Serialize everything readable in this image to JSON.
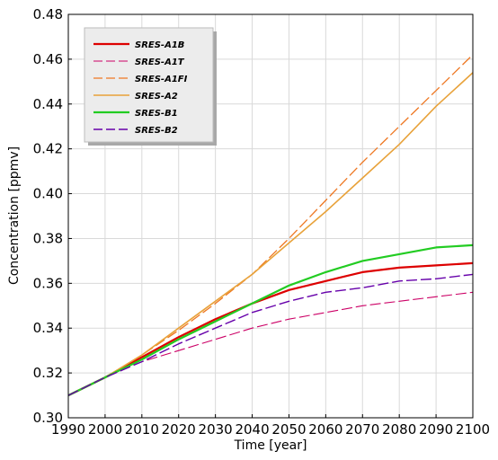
{
  "chart_data": {
    "type": "line",
    "xlabel": "Time [year]",
    "ylabel": "Concentration [ppmv]",
    "xlim": [
      1990,
      2100
    ],
    "ylim": [
      0.3,
      0.48
    ],
    "x_ticks": [
      1990,
      2000,
      2010,
      2020,
      2030,
      2040,
      2050,
      2060,
      2070,
      2080,
      2090,
      2100
    ],
    "y_ticks": [
      0.3,
      0.32,
      0.34,
      0.36,
      0.38,
      0.4,
      0.42,
      0.44,
      0.46,
      0.48
    ],
    "grid": true,
    "legend_position": "top-left",
    "series": [
      {
        "name": "SRES-A1B",
        "color": "#dd0000",
        "style": "solid",
        "width": 2.2,
        "x": [
          1990,
          2000,
          2010,
          2020,
          2030,
          2040,
          2050,
          2060,
          2070,
          2080,
          2090,
          2100
        ],
        "values": [
          0.31,
          0.318,
          0.327,
          0.336,
          0.344,
          0.351,
          0.357,
          0.361,
          0.365,
          0.367,
          0.368,
          0.369
        ]
      },
      {
        "name": "SRES-A1T",
        "color": "#cc0066",
        "style": "dashed",
        "width": 1.1,
        "x": [
          1990,
          2000,
          2010,
          2020,
          2030,
          2040,
          2050,
          2060,
          2070,
          2080,
          2090,
          2100
        ],
        "values": [
          0.31,
          0.318,
          0.325,
          0.33,
          0.335,
          0.34,
          0.344,
          0.347,
          0.35,
          0.352,
          0.354,
          0.356
        ]
      },
      {
        "name": "SRES-A1FI",
        "color": "#ee7722",
        "style": "dashed",
        "width": 1.3,
        "x": [
          1990,
          2000,
          2010,
          2020,
          2030,
          2040,
          2050,
          2060,
          2070,
          2080,
          2090,
          2100
        ],
        "values": [
          0.31,
          0.318,
          0.328,
          0.339,
          0.351,
          0.364,
          0.38,
          0.397,
          0.414,
          0.43,
          0.446,
          0.462
        ]
      },
      {
        "name": "SRES-A2",
        "color": "#e8a23a",
        "style": "solid",
        "width": 1.6,
        "x": [
          1990,
          2000,
          2010,
          2020,
          2030,
          2040,
          2050,
          2060,
          2070,
          2080,
          2090,
          2100
        ],
        "values": [
          0.31,
          0.318,
          0.328,
          0.34,
          0.352,
          0.364,
          0.378,
          0.392,
          0.407,
          0.422,
          0.439,
          0.454
        ]
      },
      {
        "name": "SRES-B1",
        "color": "#22cc22",
        "style": "solid",
        "width": 2.2,
        "x": [
          1990,
          2000,
          2010,
          2020,
          2030,
          2040,
          2050,
          2060,
          2070,
          2080,
          2090,
          2100
        ],
        "values": [
          0.31,
          0.318,
          0.326,
          0.335,
          0.343,
          0.351,
          0.359,
          0.365,
          0.37,
          0.373,
          0.376,
          0.377
        ]
      },
      {
        "name": "SRES-B2",
        "color": "#6600aa",
        "style": "dashed",
        "width": 1.4,
        "x": [
          1990,
          2000,
          2010,
          2020,
          2030,
          2040,
          2050,
          2060,
          2070,
          2080,
          2090,
          2100
        ],
        "values": [
          0.31,
          0.318,
          0.325,
          0.333,
          0.34,
          0.347,
          0.352,
          0.356,
          0.358,
          0.361,
          0.362,
          0.364
        ]
      }
    ]
  }
}
